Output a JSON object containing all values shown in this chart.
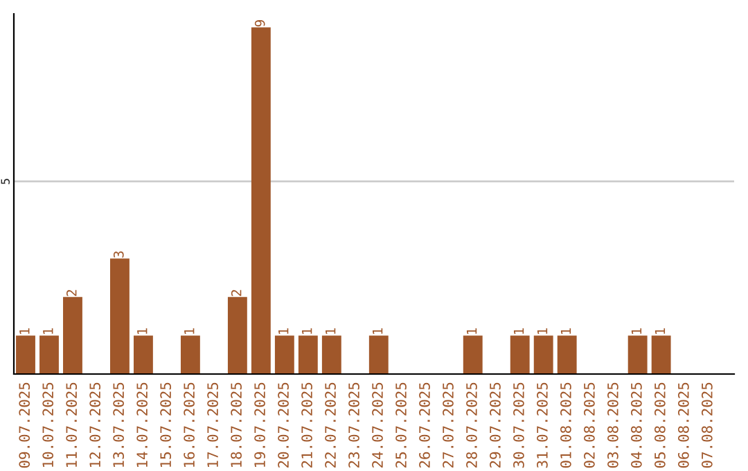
{
  "chart_data": {
    "type": "bar",
    "categories": [
      "09.07.2025",
      "10.07.2025",
      "11.07.2025",
      "12.07.2025",
      "13.07.2025",
      "14.07.2025",
      "15.07.2025",
      "16.07.2025",
      "17.07.2025",
      "18.07.2025",
      "19.07.2025",
      "20.07.2025",
      "21.07.2025",
      "22.07.2025",
      "23.07.2025",
      "24.07.2025",
      "25.07.2025",
      "26.07.2025",
      "27.07.2025",
      "28.07.2025",
      "29.07.2025",
      "30.07.2025",
      "31.07.2025",
      "01.08.2025",
      "02.08.2025",
      "03.08.2025",
      "04.08.2025",
      "05.08.2025",
      "06.08.2025",
      "07.08.2025"
    ],
    "values": [
      1,
      1,
      2,
      0,
      3,
      1,
      0,
      1,
      0,
      2,
      9,
      1,
      1,
      1,
      0,
      1,
      0,
      0,
      0,
      1,
      0,
      1,
      1,
      1,
      0,
      0,
      1,
      1,
      0,
      0
    ],
    "value_labels": [
      "1",
      "1",
      "2",
      null,
      "3",
      "1",
      null,
      "1",
      null,
      "2",
      "9",
      "1",
      "1",
      "1",
      null,
      "1",
      null,
      null,
      null,
      "1",
      null,
      "1",
      "1",
      "1",
      null,
      null,
      "1",
      "1",
      null,
      null
    ],
    "color": "#a0572a",
    "ylim": [
      0,
      9.35
    ],
    "yticks": [
      5
    ],
    "grid": "y",
    "legend": false
  }
}
